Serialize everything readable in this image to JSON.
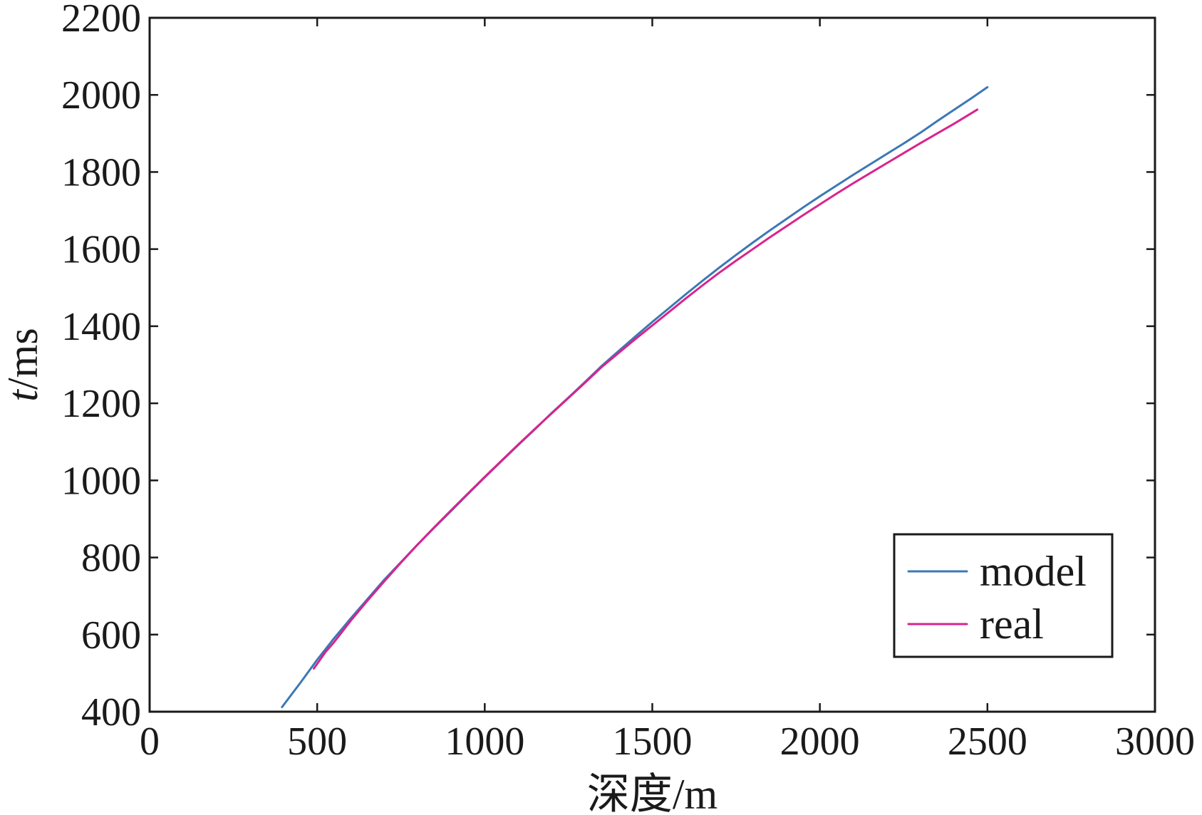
{
  "chart_data": {
    "type": "line",
    "title": "",
    "xlabel": "深度/m",
    "ylabel_italic": "t",
    "ylabel_rest": "/ms",
    "xlim": [
      0,
      3000
    ],
    "ylim": [
      400,
      2200
    ],
    "xticks": [
      0,
      500,
      1000,
      1500,
      2000,
      2500,
      3000
    ],
    "yticks": [
      400,
      600,
      800,
      1000,
      1200,
      1400,
      1600,
      1800,
      2000,
      2200
    ],
    "xtick_labels": [
      "0",
      "500",
      "1000",
      "1500",
      "2000",
      "2500",
      "3000"
    ],
    "ytick_labels": [
      "400",
      "600",
      "800",
      "1000",
      "1200",
      "1400",
      "1600",
      "1800",
      "2000",
      "2200"
    ],
    "grid": false,
    "legend_position": "lower-right",
    "series": [
      {
        "name": "model",
        "color": "#3b78b5",
        "x": [
          395,
          450,
          500,
          550,
          600,
          650,
          700,
          750,
          800,
          850,
          900,
          950,
          1000,
          1050,
          1100,
          1150,
          1200,
          1250,
          1300,
          1350,
          1400,
          1450,
          1500,
          1550,
          1600,
          1650,
          1700,
          1750,
          1800,
          1850,
          1900,
          1950,
          2000,
          2050,
          2100,
          2150,
          2200,
          2250,
          2300,
          2350,
          2400,
          2450,
          2500
        ],
        "y": [
          412,
          475,
          535,
          590,
          642,
          692,
          742,
          788,
          834,
          878,
          921,
          965,
          1008,
          1050,
          1092,
          1133,
          1175,
          1215,
          1256,
          1298,
          1336,
          1374,
          1411,
          1447,
          1483,
          1518,
          1552,
          1585,
          1617,
          1648,
          1678,
          1708,
          1737,
          1765,
          1793,
          1820,
          1847,
          1874,
          1902,
          1932,
          1961,
          1990,
          2020
        ]
      },
      {
        "name": "real",
        "color": "#d8248e",
        "x": [
          490,
          525,
          550,
          600,
          650,
          700,
          750,
          800,
          850,
          900,
          950,
          1000,
          1050,
          1100,
          1150,
          1200,
          1250,
          1300,
          1350,
          1400,
          1450,
          1500,
          1550,
          1600,
          1650,
          1700,
          1750,
          1800,
          1850,
          1900,
          1950,
          2000,
          2050,
          2100,
          2150,
          2200,
          2250,
          2300,
          2350,
          2400,
          2470
        ],
        "y": [
          512,
          555,
          580,
          636,
          688,
          738,
          787,
          834,
          879,
          923,
          966,
          1009,
          1051,
          1093,
          1134,
          1174,
          1214,
          1254,
          1295,
          1331,
          1367,
          1402,
          1437,
          1472,
          1506,
          1539,
          1570,
          1600,
          1630,
          1659,
          1688,
          1716,
          1744,
          1771,
          1797,
          1823,
          1849,
          1875,
          1900,
          1925,
          1962
        ]
      }
    ]
  }
}
